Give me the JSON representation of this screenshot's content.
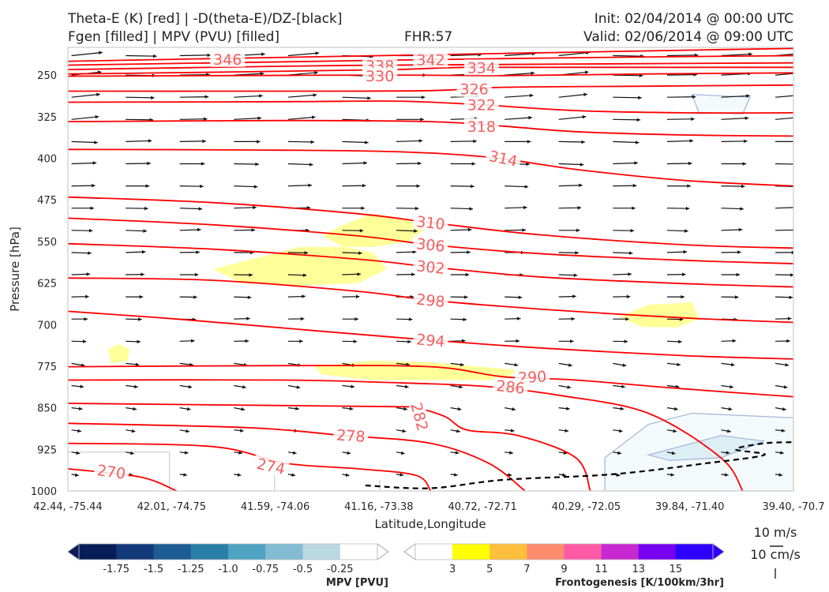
{
  "header": {
    "line1_left": "Theta-E (K) [red] | -D(theta-E)/DZ-[black]",
    "line2_left": "Fgen [filled] | MPV (PVU) [filled]",
    "fhr": "FHR:57",
    "init": "Init: 02/04/2014 @ 00:00 UTC",
    "valid": "Valid: 02/06/2014 @ 09:00 UTC"
  },
  "chart_data": {
    "type": "cross-section",
    "xlabel": "Latitude,Longitude",
    "ylabel": "Pressure [hPa]",
    "x_ticks": [
      "42.44, -75.44",
      "42.01, -74.75",
      "41.59, -74.06",
      "41.16, -73.38",
      "40.72, -72.71",
      "40.29, -72.05",
      "39.84, -71.40",
      "39.40, -70.7"
    ],
    "y_ticks": [
      250,
      325,
      400,
      475,
      550,
      625,
      700,
      775,
      850,
      925,
      1000
    ],
    "ylim": [
      1000,
      200
    ],
    "theta_e_contours": [
      {
        "label": "346",
        "points": [
          [
            0,
            225
          ],
          [
            0.3,
            218
          ],
          [
            0.6,
            211
          ],
          [
            0.9,
            204
          ],
          [
            1,
            202
          ]
        ]
      },
      {
        "label": "342",
        "points": [
          [
            0,
            232
          ],
          [
            0.3,
            226
          ],
          [
            0.5,
            222
          ],
          [
            0.75,
            218
          ],
          [
            1,
            215
          ]
        ]
      },
      {
        "label": "338",
        "points": [
          [
            0,
            240
          ],
          [
            0.3,
            234
          ],
          [
            0.45,
            232
          ],
          [
            0.7,
            230
          ],
          [
            1,
            228
          ]
        ]
      },
      {
        "label": "334",
        "points": [
          [
            0,
            248
          ],
          [
            0.25,
            244
          ],
          [
            0.45,
            240
          ],
          [
            0.55,
            236
          ],
          [
            0.75,
            236
          ],
          [
            1,
            236
          ]
        ]
      },
      {
        "label": "330",
        "points": [
          [
            0,
            252
          ],
          [
            0.2,
            251
          ],
          [
            0.45,
            250
          ],
          [
            0.6,
            251
          ],
          [
            0.8,
            248
          ],
          [
            1,
            246
          ]
        ]
      },
      {
        "label": "326",
        "points": [
          [
            0,
            279
          ],
          [
            0.3,
            279
          ],
          [
            0.5,
            278
          ],
          [
            0.6,
            272
          ],
          [
            0.8,
            270
          ],
          [
            1,
            268
          ]
        ]
      },
      {
        "label": "322",
        "points": [
          [
            0,
            299
          ],
          [
            0.3,
            298
          ],
          [
            0.45,
            297
          ],
          [
            0.55,
            302
          ],
          [
            0.7,
            314
          ],
          [
            0.85,
            318
          ],
          [
            1,
            318
          ]
        ]
      },
      {
        "label": "318",
        "points": [
          [
            0,
            334
          ],
          [
            0.3,
            332
          ],
          [
            0.5,
            334
          ],
          [
            0.6,
            342
          ],
          [
            0.7,
            352
          ],
          [
            0.85,
            358
          ],
          [
            1,
            360
          ]
        ]
      },
      {
        "label": "314",
        "points": [
          [
            0,
            384
          ],
          [
            0.25,
            385
          ],
          [
            0.45,
            388
          ],
          [
            0.58,
            398
          ],
          [
            0.7,
            420
          ],
          [
            0.85,
            440
          ],
          [
            1,
            450
          ]
        ]
      },
      {
        "label": "310",
        "points": [
          [
            0,
            470
          ],
          [
            0.2,
            480
          ],
          [
            0.4,
            500
          ],
          [
            0.5,
            516
          ],
          [
            0.65,
            538
          ],
          [
            0.85,
            556
          ],
          [
            1,
            562
          ]
        ]
      },
      {
        "label": "306",
        "points": [
          [
            0,
            508
          ],
          [
            0.2,
            520
          ],
          [
            0.4,
            540
          ],
          [
            0.5,
            556
          ],
          [
            0.65,
            572
          ],
          [
            0.85,
            584
          ],
          [
            1,
            590
          ]
        ]
      },
      {
        "label": "302",
        "points": [
          [
            0,
            554
          ],
          [
            0.2,
            564
          ],
          [
            0.4,
            582
          ],
          [
            0.5,
            596
          ],
          [
            0.65,
            614
          ],
          [
            0.85,
            626
          ],
          [
            1,
            632
          ]
        ]
      },
      {
        "label": "298",
        "points": [
          [
            0,
            616
          ],
          [
            0.2,
            620
          ],
          [
            0.4,
            640
          ],
          [
            0.5,
            656
          ],
          [
            0.65,
            672
          ],
          [
            0.85,
            688
          ],
          [
            1,
            696
          ]
        ]
      },
      {
        "label": "294",
        "points": [
          [
            0,
            676
          ],
          [
            0.15,
            690
          ],
          [
            0.35,
            712
          ],
          [
            0.5,
            728
          ],
          [
            0.65,
            742
          ],
          [
            0.85,
            756
          ],
          [
            1,
            762
          ]
        ]
      },
      {
        "label": "290",
        "points": [
          [
            0,
            776
          ],
          [
            0.3,
            774
          ],
          [
            0.5,
            776
          ],
          [
            0.6,
            794
          ],
          [
            0.7,
            800
          ],
          [
            0.85,
            816
          ],
          [
            1,
            830
          ]
        ]
      },
      {
        "label": "286",
        "points": [
          [
            0,
            800
          ],
          [
            0.3,
            800
          ],
          [
            0.48,
            806
          ],
          [
            0.58,
            812
          ],
          [
            0.68,
            828
          ],
          [
            0.8,
            860
          ],
          [
            0.9,
            940
          ],
          [
            0.93,
            1000
          ]
        ]
      },
      {
        "label": "282",
        "points": [
          [
            0,
            842
          ],
          [
            0.3,
            846
          ],
          [
            0.45,
            848
          ],
          [
            0.48,
            850
          ],
          [
            0.52,
            866
          ],
          [
            0.55,
            890
          ],
          [
            0.62,
            900
          ],
          [
            0.7,
            940
          ],
          [
            0.72,
            1000
          ]
        ]
      },
      {
        "label": "278",
        "points": [
          [
            0,
            878
          ],
          [
            0.25,
            886
          ],
          [
            0.38,
            900
          ],
          [
            0.5,
            914
          ],
          [
            0.58,
            950
          ],
          [
            0.63,
            1000
          ]
        ]
      },
      {
        "label": "274",
        "points": [
          [
            0,
            914
          ],
          [
            0.2,
            920
          ],
          [
            0.3,
            950
          ],
          [
            0.4,
            960
          ],
          [
            0.48,
            972
          ],
          [
            0.5,
            1000
          ]
        ]
      },
      {
        "label": "270",
        "points": [
          [
            0,
            960
          ],
          [
            0.1,
            975
          ],
          [
            0.15,
            1000
          ]
        ]
      }
    ],
    "dthetae_dz_contours": [
      {
        "label": "",
        "dashed": true,
        "points": [
          [
            0.41,
            990
          ],
          [
            0.5,
            995
          ],
          [
            0.6,
            980
          ],
          [
            0.75,
            970
          ],
          [
            0.88,
            950
          ],
          [
            0.96,
            935
          ],
          [
            0.92,
            925
          ],
          [
            0.96,
            914
          ],
          [
            1,
            912
          ]
        ]
      }
    ],
    "fgen_filled": [
      {
        "level": 3,
        "color": "#ffff99",
        "points": [
          [
            0.35,
            540
          ],
          [
            0.38,
            520
          ],
          [
            0.42,
            500
          ],
          [
            0.47,
            510
          ],
          [
            0.49,
            530
          ],
          [
            0.47,
            550
          ],
          [
            0.42,
            560
          ],
          [
            0.38,
            560
          ]
        ]
      },
      {
        "level": 3,
        "color": "#ffff99",
        "points": [
          [
            0.2,
            600
          ],
          [
            0.26,
            580
          ],
          [
            0.32,
            560
          ],
          [
            0.38,
            560
          ],
          [
            0.42,
            570
          ],
          [
            0.44,
            600
          ],
          [
            0.4,
            625
          ],
          [
            0.32,
            630
          ],
          [
            0.24,
            625
          ]
        ]
      },
      {
        "level": 3,
        "color": "#ffff99",
        "points": [
          [
            0.34,
            775
          ],
          [
            0.42,
            765
          ],
          [
            0.5,
            768
          ],
          [
            0.56,
            775
          ],
          [
            0.62,
            782
          ],
          [
            0.6,
            800
          ],
          [
            0.5,
            800
          ],
          [
            0.42,
            800
          ],
          [
            0.35,
            790
          ]
        ]
      },
      {
        "level": 3,
        "color": "#ffff99",
        "points": [
          [
            0.76,
            686
          ],
          [
            0.8,
            664
          ],
          [
            0.86,
            660
          ],
          [
            0.87,
            690
          ],
          [
            0.84,
            705
          ],
          [
            0.79,
            704
          ]
        ]
      },
      {
        "level": 3,
        "color": "#ffff99",
        "points": [
          [
            0.055,
            745
          ],
          [
            0.07,
            735
          ],
          [
            0.085,
            745
          ],
          [
            0.082,
            765
          ],
          [
            0.06,
            770
          ]
        ]
      }
    ],
    "mpv_filled": [
      {
        "level": -0.25,
        "color": "#f4fafc",
        "points": [
          [
            0.74,
            1000
          ],
          [
            0.74,
            940
          ],
          [
            0.8,
            880
          ],
          [
            0.86,
            860
          ],
          [
            1,
            868
          ],
          [
            1,
            1000
          ]
        ]
      },
      {
        "level": -0.5,
        "color": "#deeef5",
        "points": [
          [
            0.8,
            935
          ],
          [
            0.9,
            900
          ],
          [
            0.96,
            910
          ],
          [
            0.9,
            940
          ],
          [
            0.83,
            945
          ]
        ]
      },
      {
        "level": -0.25,
        "color": "#f4fafc",
        "points": [
          [
            0.86,
            285
          ],
          [
            0.94,
            290
          ],
          [
            0.93,
            320
          ],
          [
            0.87,
            318
          ]
        ]
      }
    ],
    "mpv_colorbar": {
      "title": "MPV [PVU]",
      "ticks": [
        "-1.75",
        "-1.5",
        "-1.25",
        "-1.0",
        "-0.75",
        "-0.5",
        "-0.25"
      ],
      "colors": [
        "#081d58",
        "#13397a",
        "#1d5c92",
        "#2a7fa8",
        "#4ea3c3",
        "#82bcd3",
        "#bad9e3",
        "#ffffff"
      ]
    },
    "fgen_colorbar": {
      "title": "Frontogenesis [K/100km/3hr]",
      "ticks": [
        "3",
        "5",
        "7",
        "9",
        "11",
        "13",
        "15"
      ],
      "colors": [
        "#ffffff",
        "#ffff00",
        "#ffbe3c",
        "#ff8c6e",
        "#ff5aa5",
        "#c828d2",
        "#7800f0",
        "#2d00ff"
      ]
    },
    "vector_legend": {
      "horizontal": "10 m/s",
      "vertical": "10 cm/s"
    }
  }
}
